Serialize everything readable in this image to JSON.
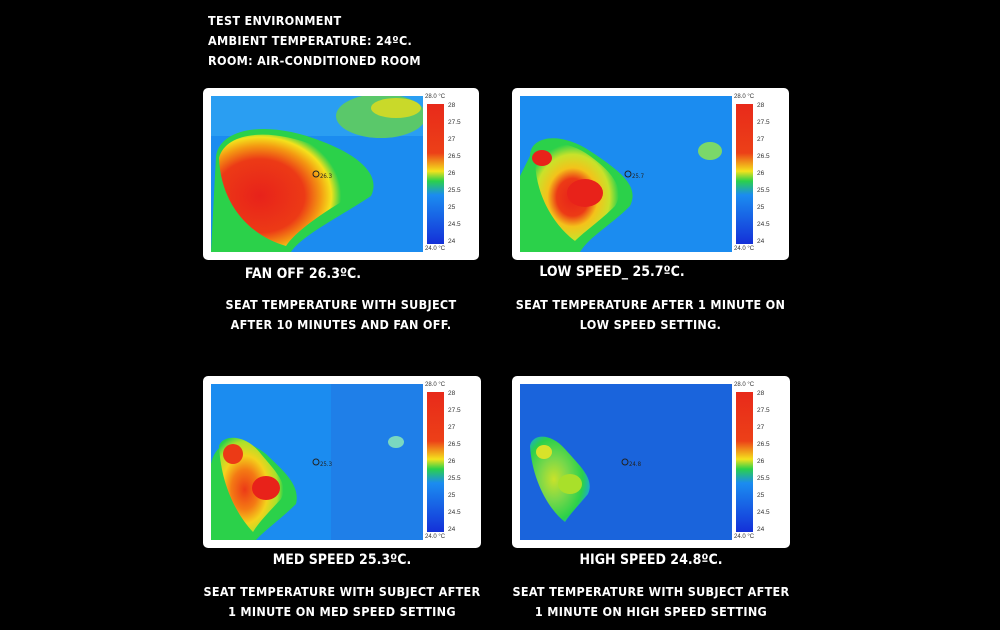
{
  "environment": {
    "line1": "TEST ENVIRONMENT",
    "line2": "AMBIENT TEMPERATURE: 24ºC.",
    "line3": "ROOM: AIR-CONDITIONED ROOM"
  },
  "scale": {
    "top_label": "28.0 °C",
    "bottom_label": "24.0 °C",
    "ticks": [
      "28",
      "27.5",
      "27",
      "26.5",
      "26",
      "25.5",
      "25",
      "24.5",
      "24"
    ]
  },
  "panels": [
    {
      "title": "FAN OFF 26.3ºC.",
      "marker": "26.3",
      "desc": "SEAT TEMPERATURE WITH SUBJECT AFTER 10 MINUTES AND FAN OFF."
    },
    {
      "title": "LOW SPEED_ 25.7ºC.",
      "marker": "25.7",
      "desc": "SEAT TEMPERATURE AFTER 1 MINUTE ON LOW SPEED SETTING."
    },
    {
      "title": "MED SPEED 25.3ºC.",
      "marker": "25.3",
      "desc": "SEAT TEMPERATURE WITH SUBJECT AFTER 1 MINUTE ON MED SPEED SETTING"
    },
    {
      "title": "HIGH SPEED 24.8ºC.",
      "marker": "24.8",
      "desc": "SEAT TEMPERATURE WITH SUBJECT AFTER 1 MINUTE ON HIGH SPEED SETTING"
    }
  ],
  "colors": {
    "hot": "#e8221a",
    "warm": "#f4e21c",
    "mid": "#2bd14a",
    "cool": "#1b8cf0",
    "cold": "#1430d8"
  }
}
